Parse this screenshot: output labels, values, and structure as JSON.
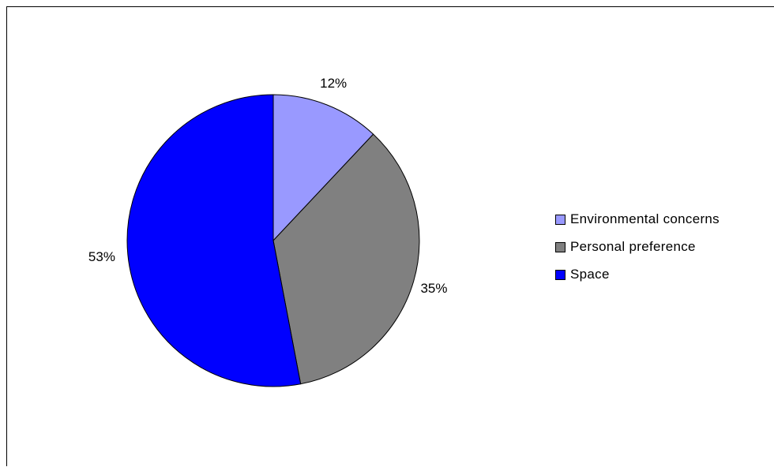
{
  "chart_data": {
    "type": "pie",
    "categories": [
      "Environmental concerns",
      "Personal preference",
      "Space"
    ],
    "values": [
      12,
      35,
      53
    ],
    "value_labels": [
      "12%",
      "35%",
      "53%"
    ],
    "colors": [
      "#9999FF",
      "#808080",
      "#0000FF"
    ],
    "legend_position": "right",
    "start_angle": "12 o'clock",
    "direction": "clockwise"
  }
}
